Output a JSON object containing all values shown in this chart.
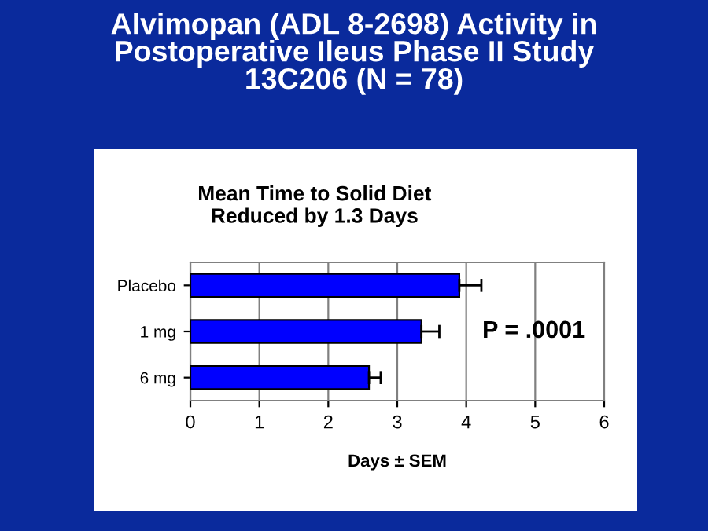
{
  "chart_data": {
    "type": "bar",
    "orientation": "horizontal",
    "title": "Alvimopan (ADL 8-2698) Activity in\nPostoperative Ileus Phase II Study\n13C206 (N = 78)",
    "subtitle": "Mean Time to Solid Diet\nReduced by 1.3 Days",
    "categories": [
      "Placebo",
      "1 mg",
      "6 mg"
    ],
    "values": [
      3.9,
      3.35,
      2.59
    ],
    "errors": [
      [
        3.9,
        4.22
      ],
      [
        3.35,
        3.61
      ],
      [
        2.59,
        2.76
      ]
    ],
    "color": "#0000ff",
    "xlim": [
      0,
      6
    ],
    "xticks": [
      0,
      1,
      2,
      3,
      4,
      5,
      6
    ],
    "xlabel": "Days ± SEM",
    "grid": "x",
    "annotations": [
      "P = .0001"
    ]
  }
}
